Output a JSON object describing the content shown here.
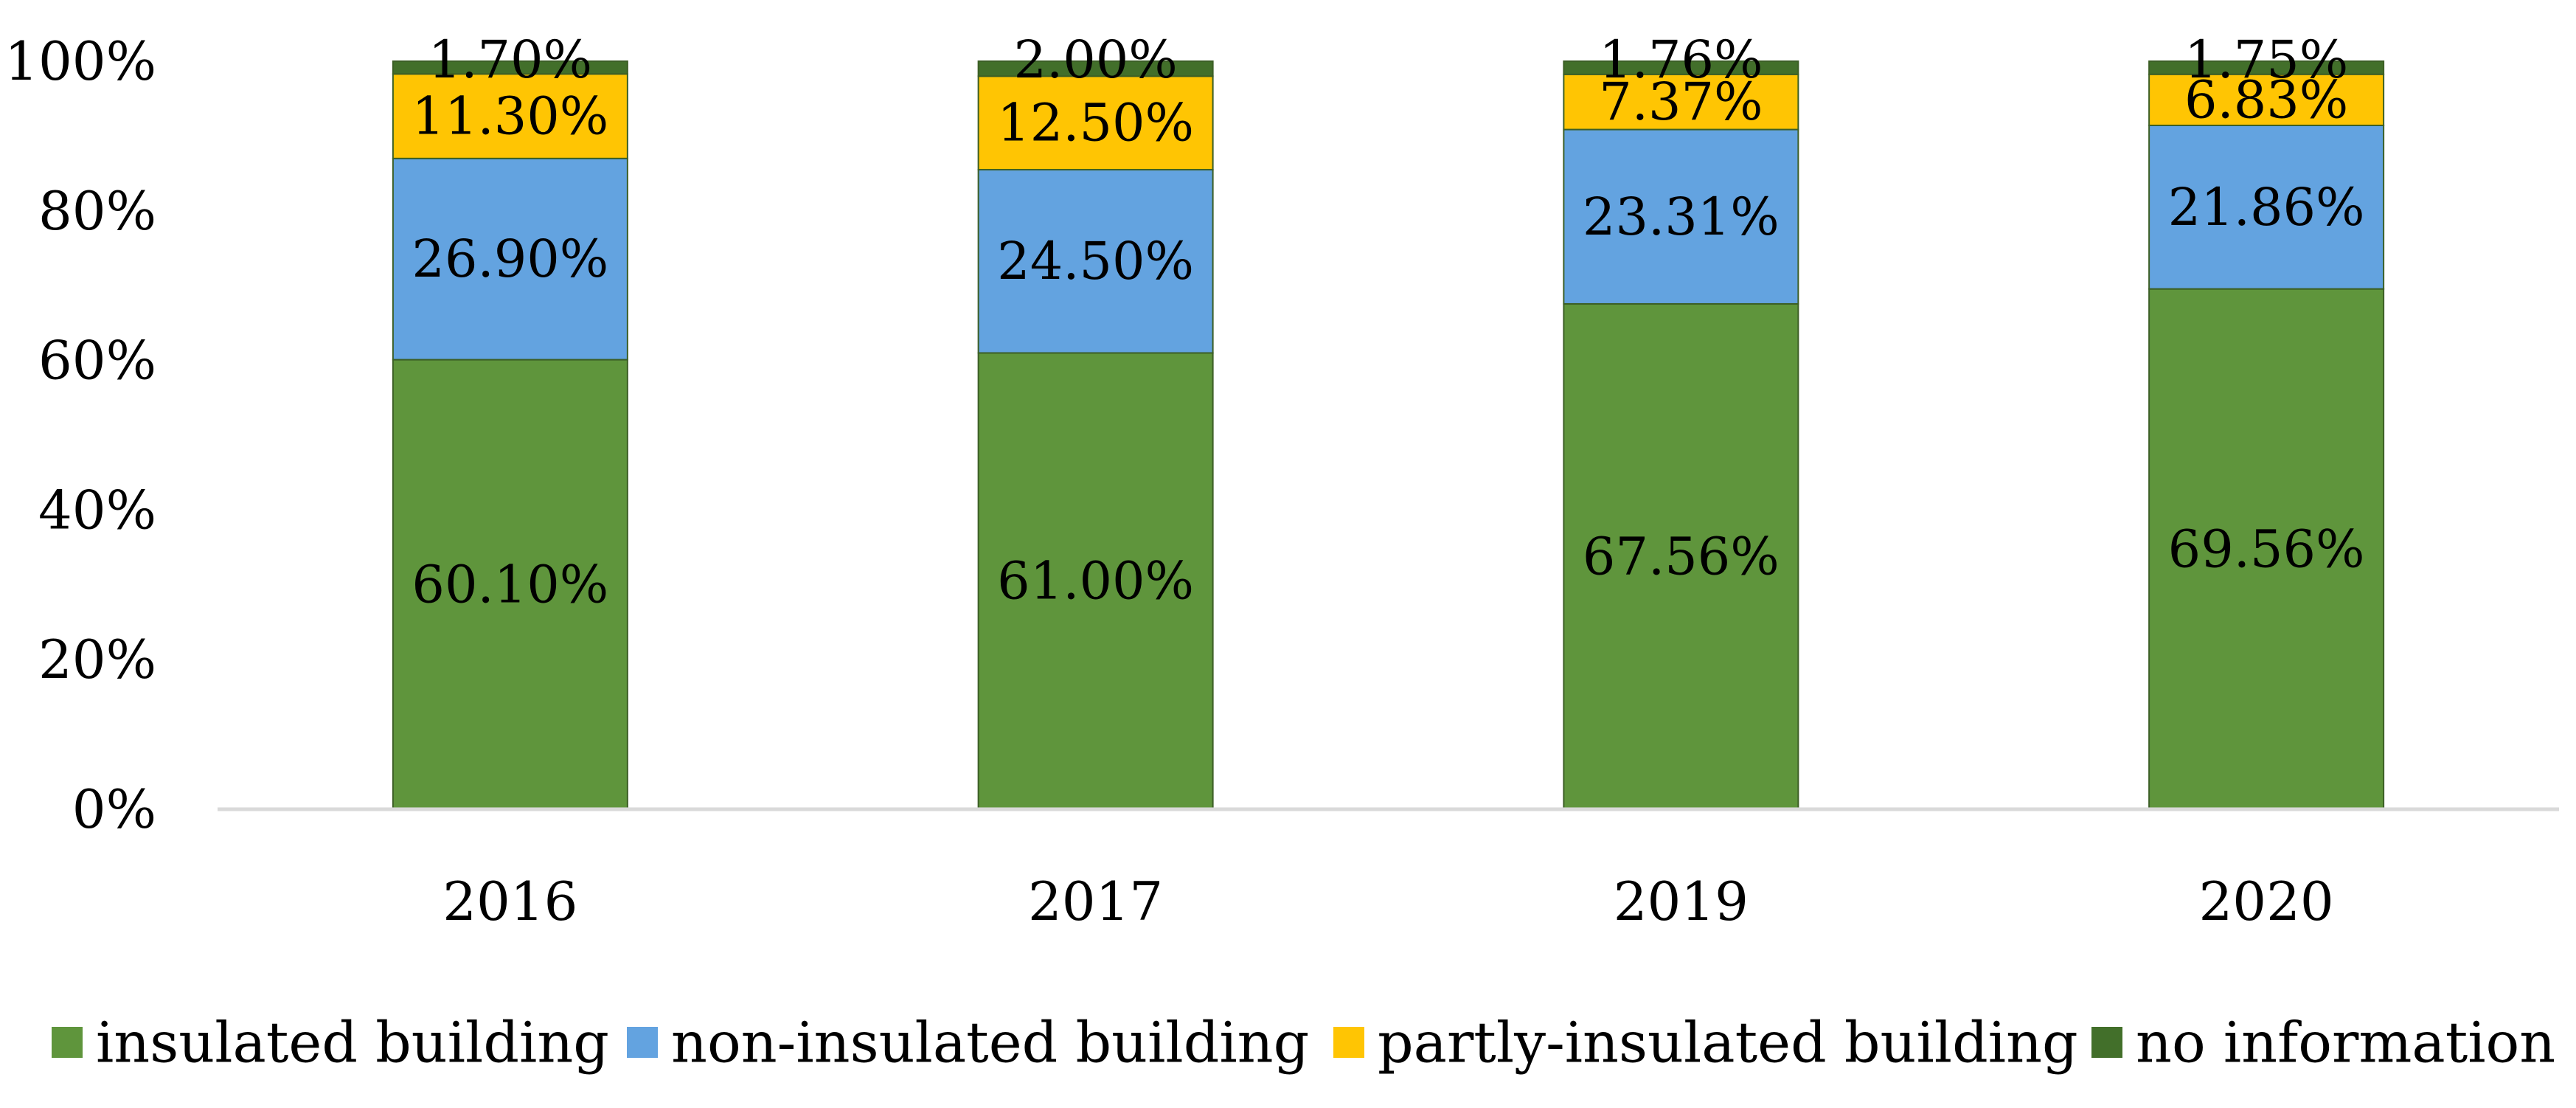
{
  "chart_data": {
    "type": "bar",
    "stacked": true,
    "categories": [
      "2016",
      "2017",
      "2019",
      "2020"
    ],
    "series": [
      {
        "name": "insulated building",
        "color": "#5f953c",
        "values": [
          60.1,
          61.0,
          67.56,
          69.56
        ],
        "labels": [
          "60.10%",
          "61.00%",
          "67.56%",
          "69.56%"
        ]
      },
      {
        "name": "non-insulated building",
        "color": "#63a3e0",
        "values": [
          26.9,
          24.5,
          23.31,
          21.86
        ],
        "labels": [
          "26.90%",
          "24.50%",
          "23.31%",
          "21.86%"
        ]
      },
      {
        "name": "partly-insulated building",
        "color": "#ffc503",
        "values": [
          11.3,
          12.5,
          7.37,
          6.83
        ],
        "labels": [
          "11.30%",
          "12.50%",
          "7.37%",
          "6.83%"
        ]
      },
      {
        "name": "no information",
        "color": "#426f2a",
        "values": [
          1.7,
          2.0,
          1.76,
          1.75
        ],
        "labels": [
          "1.70%",
          "2.00%",
          "1.76%",
          "1.75%"
        ]
      }
    ],
    "y_ticks": [
      {
        "value": 0,
        "label": "0%"
      },
      {
        "value": 20,
        "label": "20%"
      },
      {
        "value": 40,
        "label": "40%"
      },
      {
        "value": 60,
        "label": "60%"
      },
      {
        "value": 80,
        "label": "80%"
      },
      {
        "value": 100,
        "label": "100%"
      }
    ],
    "ylim": [
      0,
      100
    ],
    "title": "",
    "xlabel": "",
    "ylabel": "",
    "grid": false,
    "legend_position": "bottom"
  }
}
